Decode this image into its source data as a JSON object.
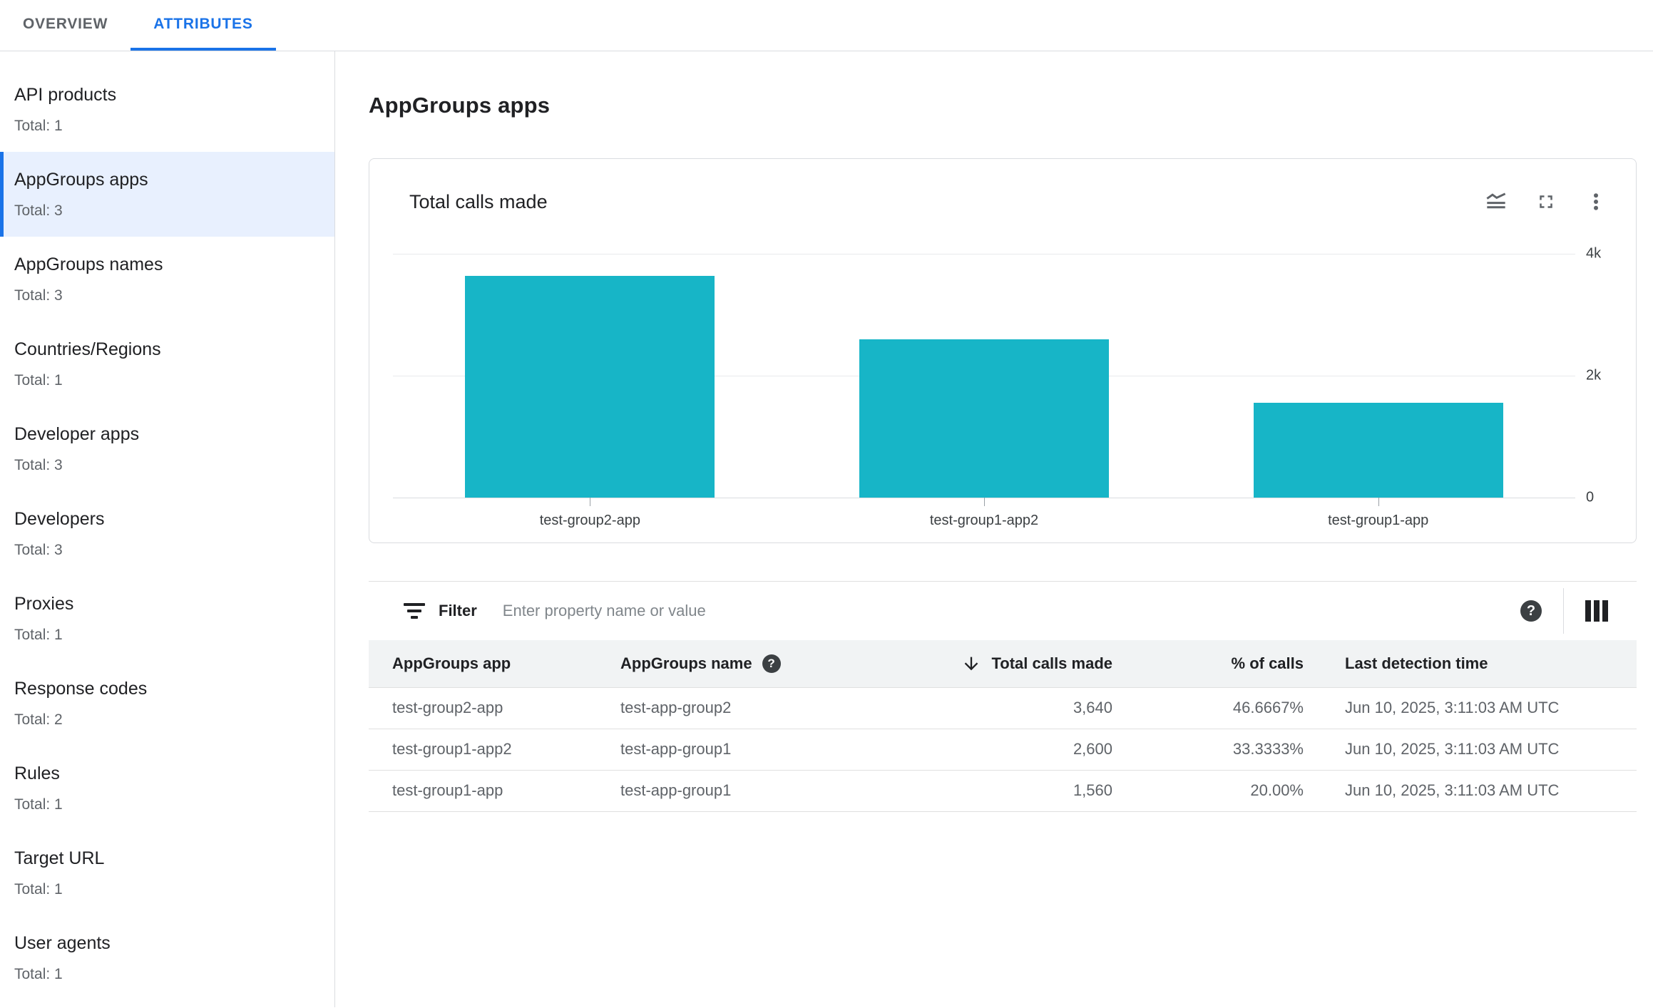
{
  "tabs": [
    {
      "label": "OVERVIEW",
      "active": false
    },
    {
      "label": "ATTRIBUTES",
      "active": true
    }
  ],
  "sidebar": {
    "selected_index": 1,
    "items": [
      {
        "label": "API products",
        "total": "Total: 1"
      },
      {
        "label": "AppGroups apps",
        "total": "Total: 3"
      },
      {
        "label": "AppGroups names",
        "total": "Total: 3"
      },
      {
        "label": "Countries/Regions",
        "total": "Total: 1"
      },
      {
        "label": "Developer apps",
        "total": "Total: 3"
      },
      {
        "label": "Developers",
        "total": "Total: 3"
      },
      {
        "label": "Proxies",
        "total": "Total: 1"
      },
      {
        "label": "Response codes",
        "total": "Total: 2"
      },
      {
        "label": "Rules",
        "total": "Total: 1"
      },
      {
        "label": "Target URL",
        "total": "Total: 1"
      },
      {
        "label": "User agents",
        "total": "Total: 1"
      }
    ]
  },
  "main": {
    "title": "AppGroups apps"
  },
  "chart_card": {
    "title": "Total calls made",
    "icons": [
      "area-chart",
      "fullscreen",
      "more-options"
    ],
    "chart_data": {
      "type": "bar",
      "categories": [
        "test-group2-app",
        "test-group1-app2",
        "test-group1-app"
      ],
      "values": [
        3640,
        2600,
        1560
      ],
      "title": "Total calls made",
      "xlabel": "",
      "ylabel": "",
      "ylim": [
        0,
        4000
      ],
      "yticks": [
        {
          "label": "4k",
          "value": 4000
        },
        {
          "label": "2k",
          "value": 2000
        },
        {
          "label": "0",
          "value": 0
        }
      ],
      "bar_color": "#17b5c7",
      "grid": true,
      "legend": false
    }
  },
  "filter": {
    "label": "Filter",
    "placeholder": "Enter property name or value"
  },
  "table": {
    "columns": [
      {
        "label": "AppGroups app",
        "align": "left"
      },
      {
        "label": "AppGroups name",
        "align": "left",
        "help_icon": true
      },
      {
        "label": "Total calls made",
        "align": "right",
        "sorted": "desc"
      },
      {
        "label": "% of calls",
        "align": "right"
      },
      {
        "label": "Last detection time",
        "align": "left"
      }
    ],
    "rows": [
      [
        "test-group2-app",
        "test-app-group2",
        "3,640",
        "46.6667%",
        "Jun 10, 2025, 3:11:03 AM UTC"
      ],
      [
        "test-group1-app2",
        "test-app-group1",
        "2,600",
        "33.3333%",
        "Jun 10, 2025, 3:11:03 AM UTC"
      ],
      [
        "test-group1-app",
        "test-app-group1",
        "1,560",
        "20.00%",
        "Jun 10, 2025, 3:11:03 AM UTC"
      ]
    ]
  },
  "colors": {
    "accent_blue": "#1a73e8",
    "selected_item_bg": "#e8f0fe",
    "bar_teal": "#17b5c7",
    "header_row_bg": "#f1f3f4",
    "border": "#dadce0",
    "text_primary": "#202124",
    "text_secondary": "#5f6368"
  }
}
